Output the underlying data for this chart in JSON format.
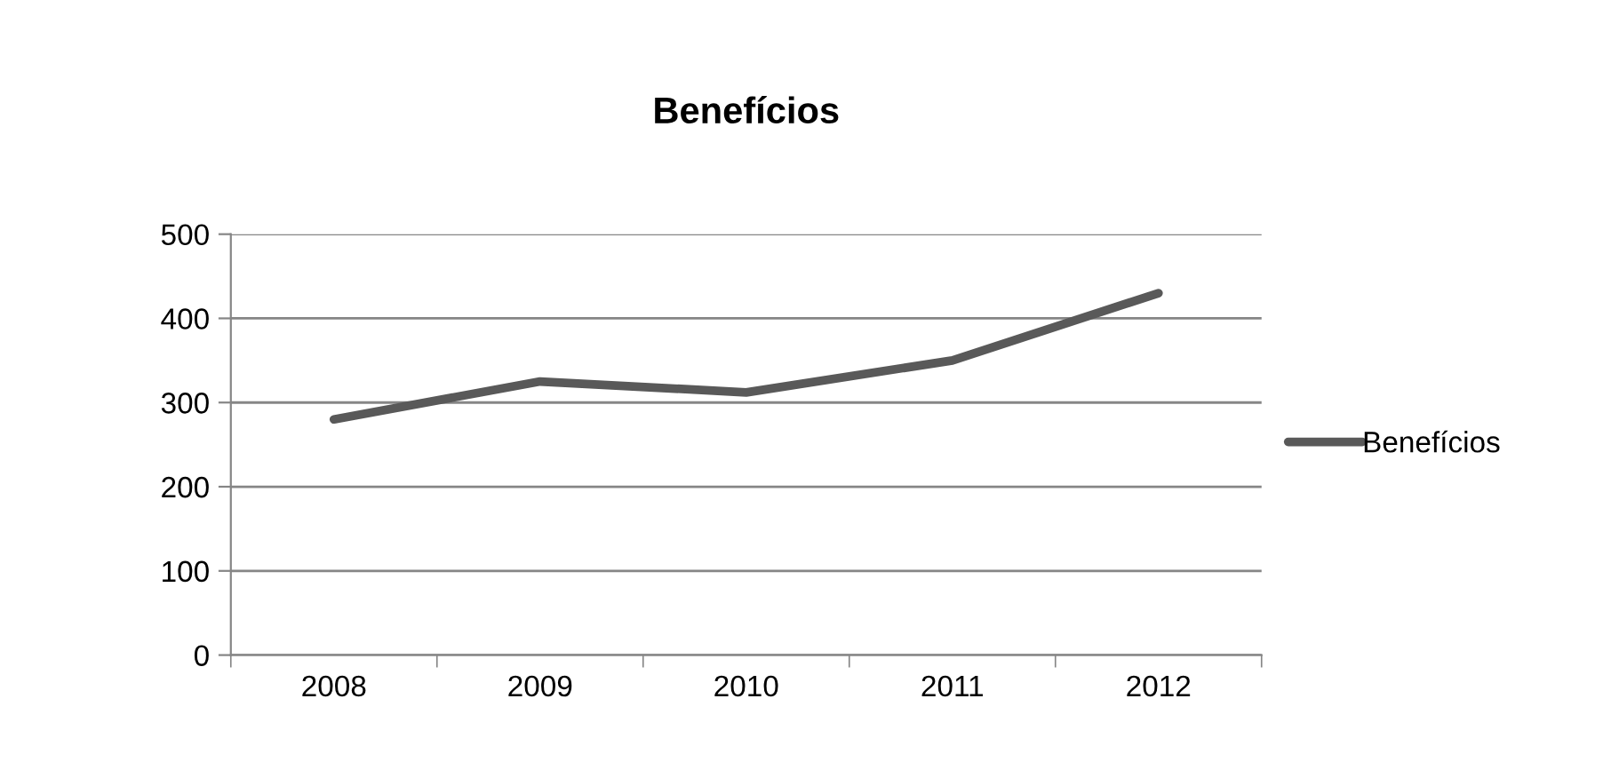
{
  "chart_data": {
    "type": "line",
    "title": "Benefícios",
    "categories": [
      "2008",
      "2009",
      "2010",
      "2011",
      "2012"
    ],
    "series": [
      {
        "name": "Benefícios",
        "color": "#595959",
        "values": [
          280,
          325,
          312,
          350,
          430
        ]
      }
    ],
    "ylim": [
      0,
      500
    ],
    "yticks": [
      0,
      100,
      200,
      300,
      400,
      500
    ],
    "grid": "y",
    "legend": "right",
    "marker": "none",
    "line_style": "solid"
  }
}
